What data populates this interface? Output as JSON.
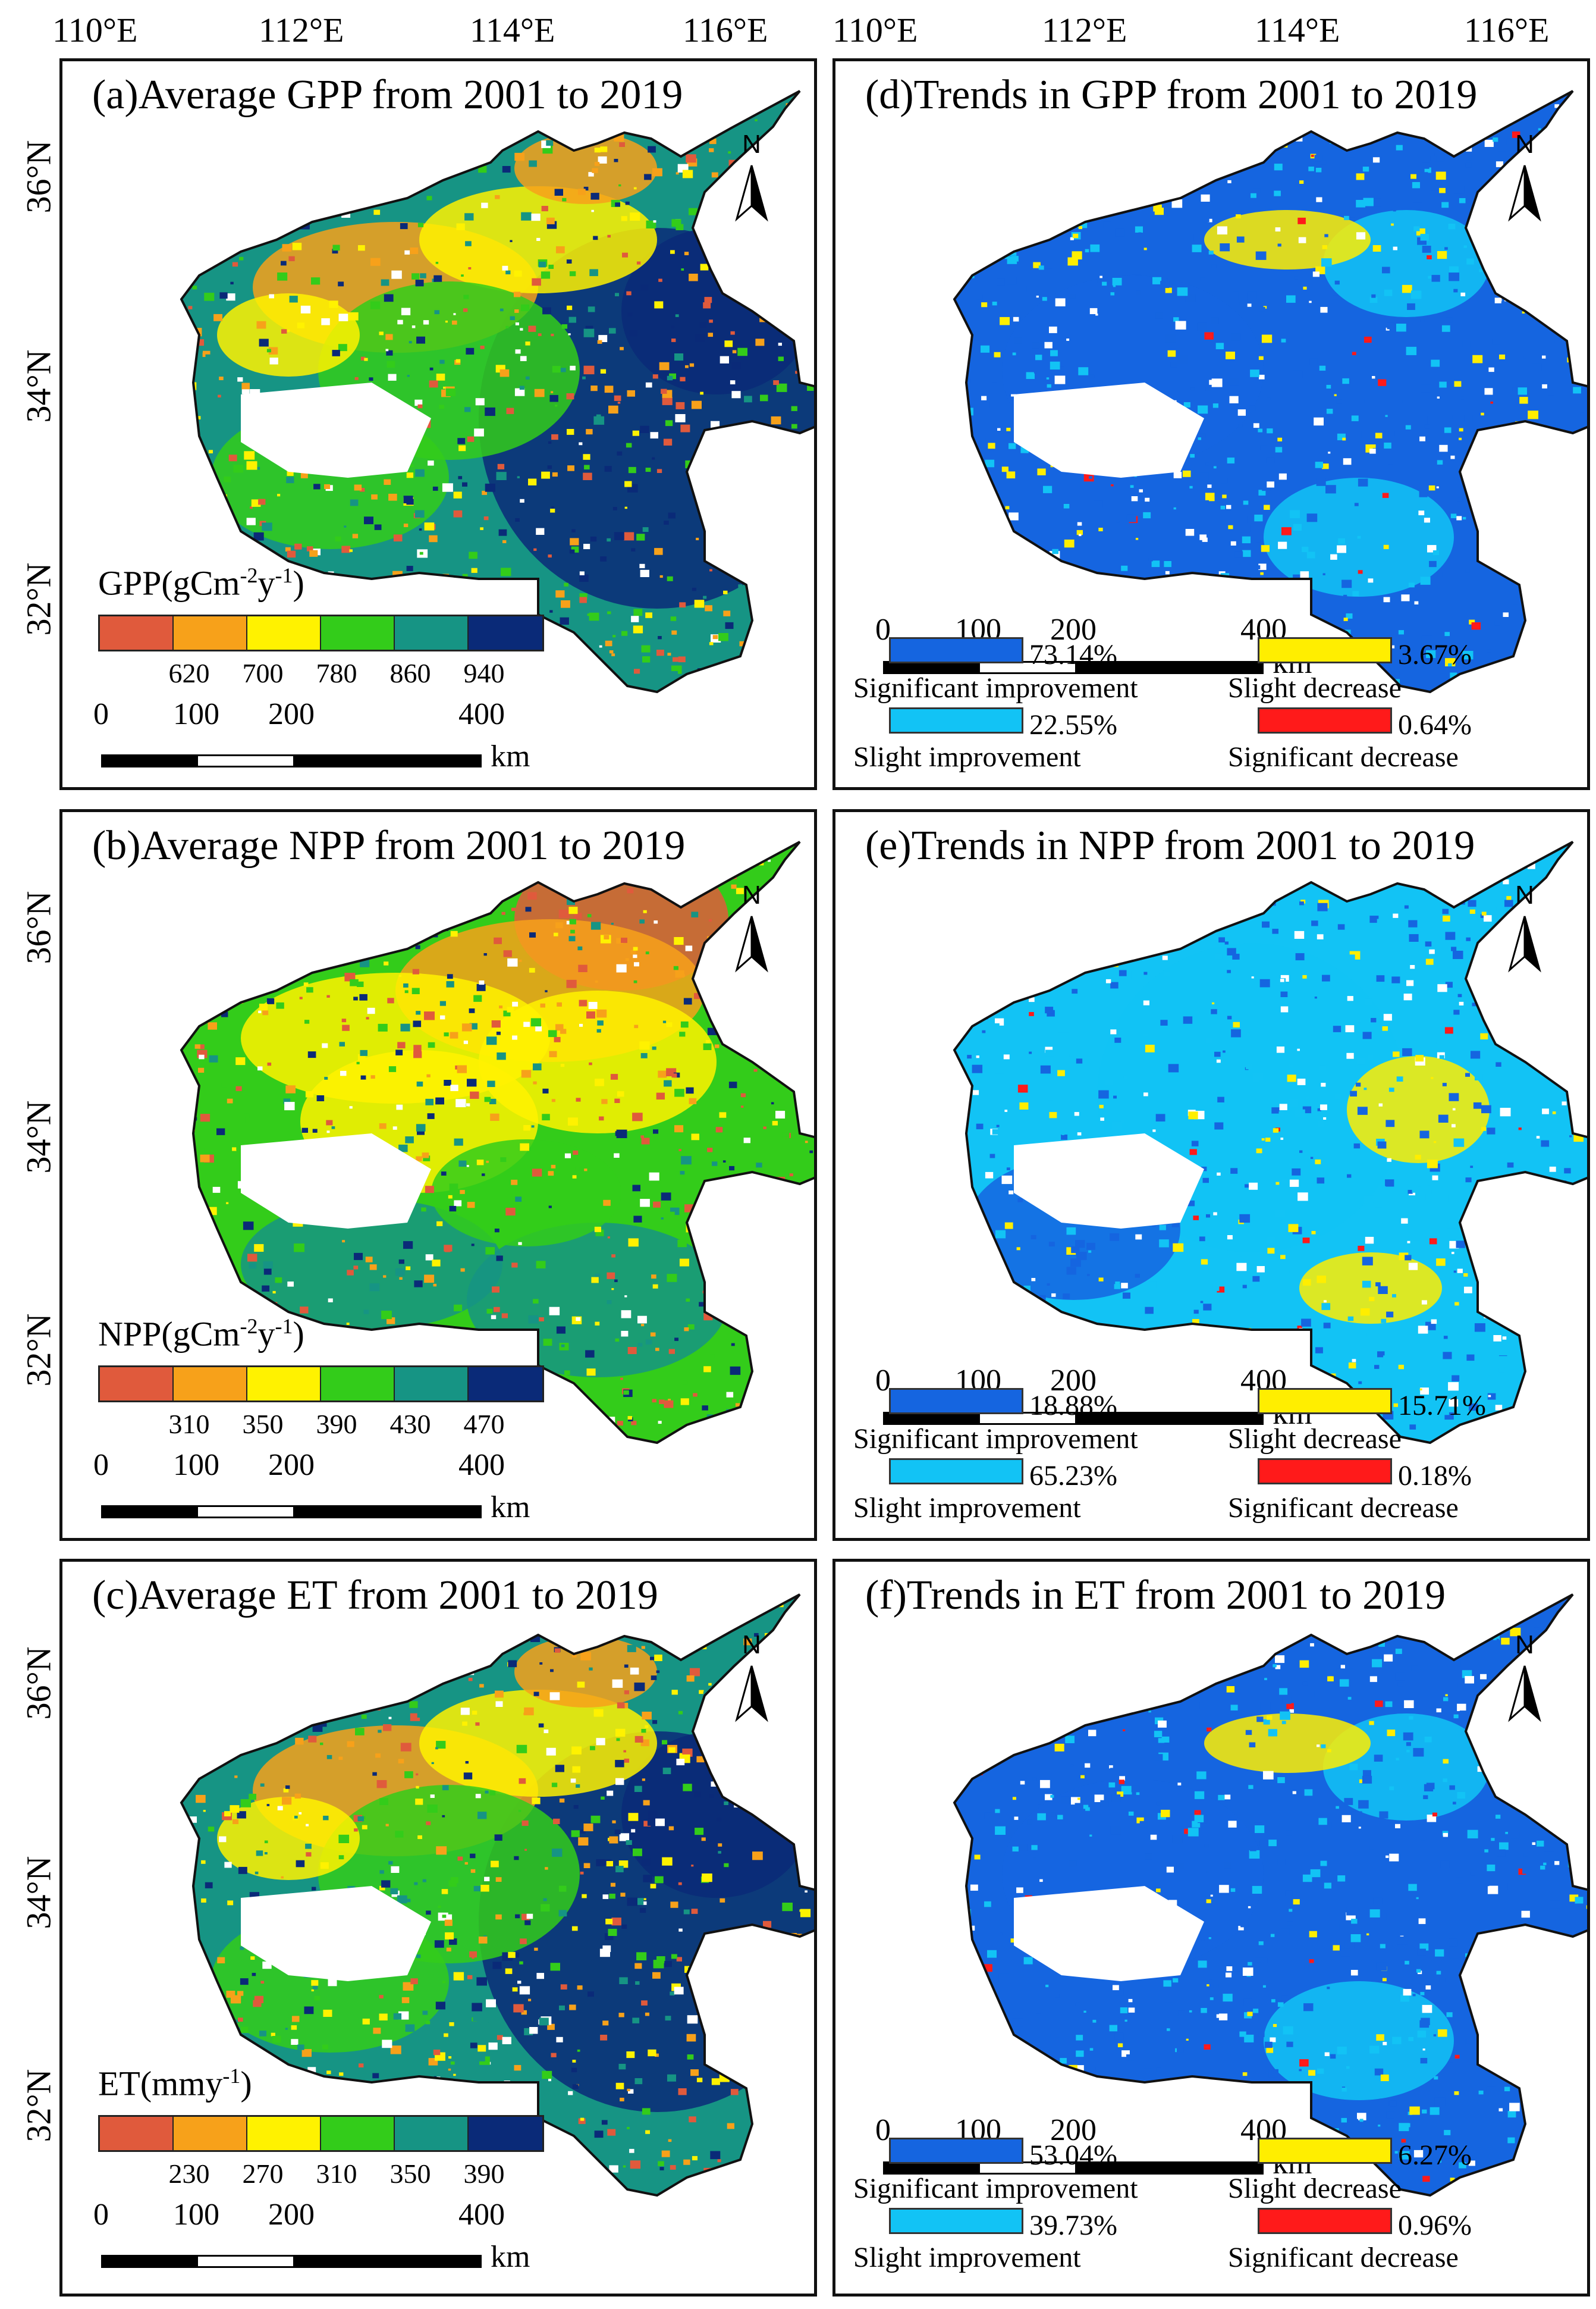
{
  "axes": {
    "lon_labels": [
      "110°E",
      "112°E",
      "114°E",
      "116°E"
    ],
    "lat_labels": [
      "36°N",
      "34°N",
      "32°N"
    ]
  },
  "north_label": "N",
  "scalebar": {
    "ticks": [
      "0",
      "100",
      "200",
      "400"
    ],
    "unit": "km"
  },
  "colors": {
    "ramp": [
      "#e05a3c",
      "#f7a11a",
      "#fff200",
      "#33cc1a",
      "#169484",
      "#0a2a78"
    ],
    "trend": {
      "significant_improvement": "#1565e0",
      "slight_improvement": "#12c3f5",
      "slight_decrease": "#ffee00",
      "significant_decrease": "#ff1a1a"
    }
  },
  "panels": {
    "a": {
      "title": "(a)Average GPP from 2001 to 2019",
      "unit_main": "GPP(gCm",
      "unit_sup1": "-2",
      "unit_mid": "y",
      "unit_sup2": "-1",
      "unit_end": ")",
      "ticks": [
        "620",
        "700",
        "780",
        "860",
        "940"
      ]
    },
    "b": {
      "title": "(b)Average NPP from 2001 to 2019",
      "unit_main": "NPP(gCm",
      "unit_sup1": "-2",
      "unit_mid": "y",
      "unit_sup2": "-1",
      "unit_end": ")",
      "ticks": [
        "310",
        "350",
        "390",
        "430",
        "470"
      ]
    },
    "c": {
      "title": "(c)Average ET from 2001 to 2019",
      "unit_main": "ET(mmy",
      "unit_sup1": "",
      "unit_mid": "",
      "unit_sup2": "-1",
      "unit_end": ")",
      "ticks": [
        "230",
        "270",
        "310",
        "350",
        "390"
      ]
    },
    "d": {
      "title": "(d)Trends in GPP from 2001 to 2019",
      "legend": {
        "sig_imp": "73.14%",
        "slight_imp": "22.55%",
        "slight_dec": "3.67%",
        "sig_dec": "0.64%"
      }
    },
    "e": {
      "title": "(e)Trends in NPP from 2001 to 2019",
      "legend": {
        "sig_imp": "18.88%",
        "slight_imp": "65.23%",
        "slight_dec": "15.71%",
        "sig_dec": "0.18%"
      }
    },
    "f": {
      "title": "(f)Trends in ET from 2001 to 2019",
      "legend": {
        "sig_imp": "53.04%",
        "slight_imp": "39.73%",
        "slight_dec": "6.27%",
        "sig_dec": "0.96%"
      }
    }
  },
  "legend_labels": {
    "sig_imp": "Significant  improvement",
    "slight_imp": "Slight  improvement",
    "slight_dec": "Slight  decrease",
    "sig_dec": "Significant  decrease"
  }
}
